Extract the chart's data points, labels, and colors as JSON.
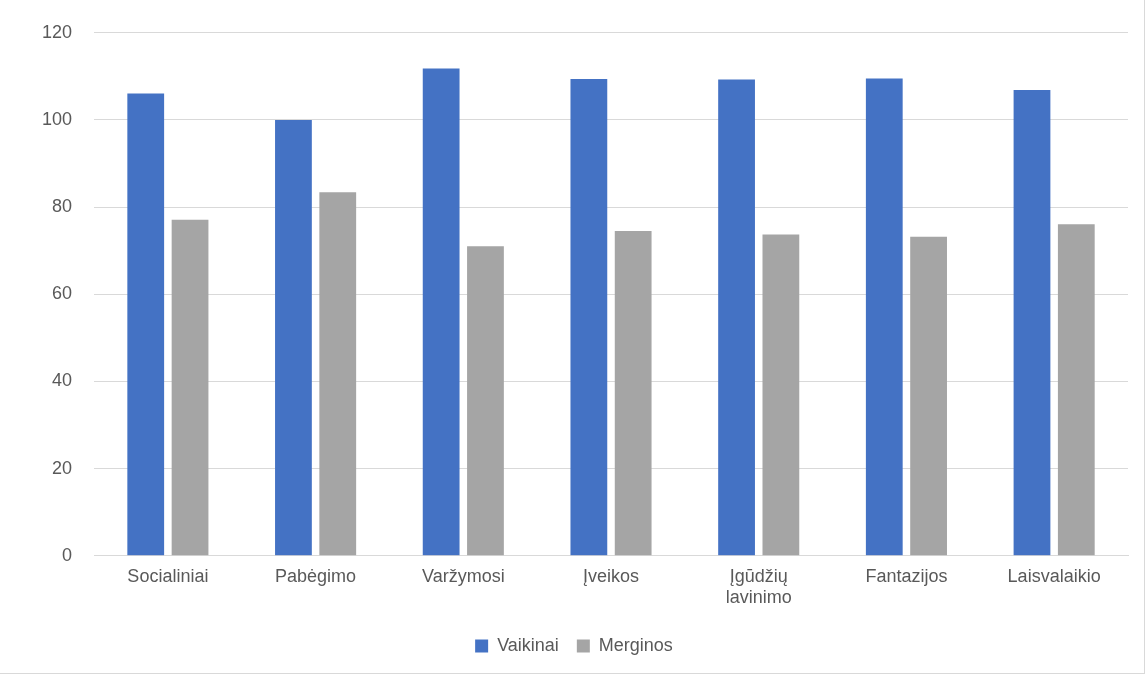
{
  "chart_data": {
    "type": "bar",
    "categories": [
      "Socialiniai",
      "Pabėgimo",
      "Varžymosi",
      "Įveikos",
      "Įgūdžių lavinimo",
      "Fantazijos",
      "Laisvalaikio"
    ],
    "series": [
      {
        "name": "Vaikinai",
        "color": "#4472c4",
        "values": [
          106.1,
          100,
          111.8,
          109.4,
          109.3,
          109.5,
          106.9
        ]
      },
      {
        "name": "Merginos",
        "color": "#a5a5a5",
        "values": [
          77.1,
          83.4,
          71,
          74.5,
          73.7,
          73.2,
          76.1
        ]
      }
    ],
    "ylim": [
      0,
      120
    ],
    "yticks": [
      0,
      20,
      40,
      60,
      80,
      100,
      120
    ],
    "grid": "y",
    "legend": "bottom"
  }
}
